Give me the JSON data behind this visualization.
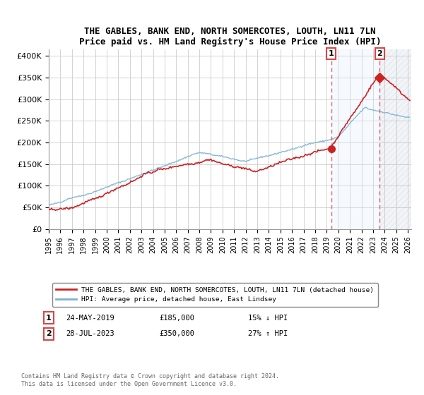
{
  "title": "THE GABLES, BANK END, NORTH SOMERCOTES, LOUTH, LN11 7LN",
  "subtitle": "Price paid vs. HM Land Registry's House Price Index (HPI)",
  "ylabel_ticks": [
    "£0",
    "£50K",
    "£100K",
    "£150K",
    "£200K",
    "£250K",
    "£300K",
    "£350K",
    "£400K"
  ],
  "ytick_values": [
    0,
    50000,
    100000,
    150000,
    200000,
    250000,
    300000,
    350000,
    400000
  ],
  "ylim": [
    0,
    415000
  ],
  "legend_line1": "THE GABLES, BANK END, NORTH SOMERCOTES, LOUTH, LN11 7LN (detached house)",
  "legend_line2": "HPI: Average price, detached house, East Lindsey",
  "annotation1_label": "1",
  "annotation1_date": "24-MAY-2019",
  "annotation1_price": "£185,000",
  "annotation1_hpi": "15% ↓ HPI",
  "annotation2_label": "2",
  "annotation2_date": "28-JUL-2023",
  "annotation2_price": "£350,000",
  "annotation2_hpi": "27% ↑ HPI",
  "footer": "Contains HM Land Registry data © Crown copyright and database right 2024.\nThis data is licensed under the Open Government Licence v3.0.",
  "hpi_color": "#7ab0d4",
  "price_color": "#cc2222",
  "annotation_color": "#dd4444",
  "background_color": "#ffffff",
  "grid_color": "#cccccc",
  "shade_color": "#ddeeff",
  "hatch_color": "#cccccc",
  "sale1_year": 2019.39,
  "sale2_year": 2023.58,
  "xlim_start": 1995,
  "xlim_end": 2026.3
}
